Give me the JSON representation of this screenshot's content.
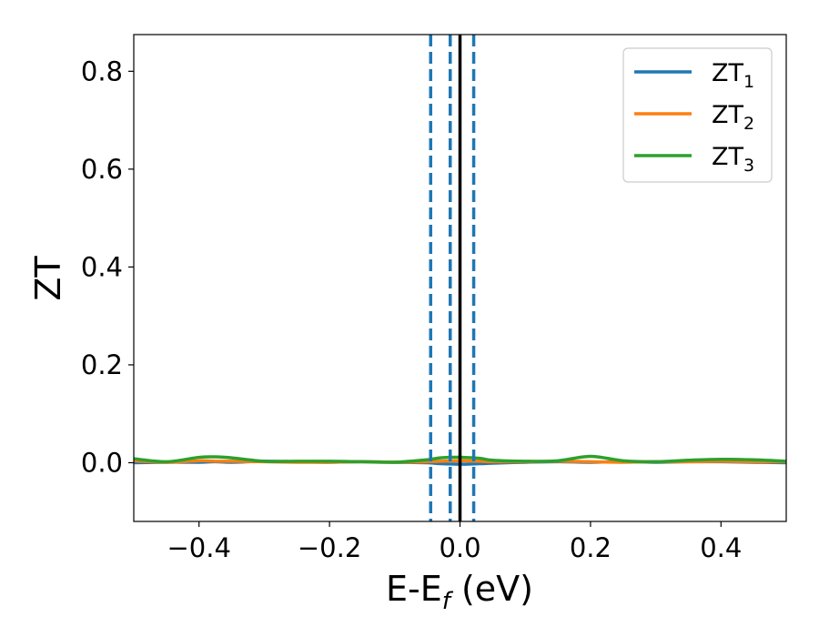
{
  "chart_data": {
    "type": "line",
    "xlabel": {
      "main": "E-E",
      "sub": "f",
      "unit": " (eV)"
    },
    "ylabel": "ZT",
    "xlim": [
      -0.5,
      0.5
    ],
    "ylim": [
      -0.12,
      0.875
    ],
    "xticks": [
      -0.4,
      -0.2,
      0.0,
      0.2,
      0.4
    ],
    "xtick_labels": [
      "−0.4",
      "−0.2",
      "0.0",
      "0.2",
      "0.4"
    ],
    "yticks": [
      0.0,
      0.2,
      0.4,
      0.6,
      0.8
    ],
    "ytick_labels": [
      "0.0",
      "0.2",
      "0.4",
      "0.6",
      "0.8"
    ],
    "grid": false,
    "legend_position": "top-right",
    "x": [
      -0.5,
      -0.45,
      -0.4,
      -0.375,
      -0.35,
      -0.3,
      -0.25,
      -0.2,
      -0.15,
      -0.1,
      -0.05,
      -0.03,
      0.0,
      0.03,
      0.05,
      0.1,
      0.15,
      0.2,
      0.25,
      0.3,
      0.35,
      0.4,
      0.45,
      0.5
    ],
    "series": [
      {
        "name": "ZT",
        "sub": "1",
        "color": "#1f77b4",
        "values": [
          0.0,
          0.001,
          0.001,
          0.002,
          0.001,
          0.003,
          0.002,
          0.001,
          0.002,
          0.001,
          0.0,
          -0.002,
          -0.003,
          -0.002,
          -0.001,
          0.001,
          0.002,
          0.001,
          0.002,
          0.001,
          0.002,
          0.002,
          0.001,
          0.0
        ]
      },
      {
        "name": "ZT",
        "sub": "2",
        "color": "#ff7f0e",
        "values": [
          0.004,
          0.001,
          0.004,
          0.003,
          0.003,
          0.002,
          0.001,
          0.001,
          0.002,
          0.001,
          0.002,
          0.003,
          0.004,
          0.003,
          0.002,
          0.002,
          0.003,
          0.002,
          0.001,
          0.002,
          0.002,
          0.003,
          0.002,
          0.002
        ]
      },
      {
        "name": "ZT",
        "sub": "3",
        "color": "#2ca02c",
        "values": [
          0.008,
          0.002,
          0.011,
          0.012,
          0.01,
          0.003,
          0.003,
          0.003,
          0.002,
          0.001,
          0.006,
          0.01,
          0.011,
          0.009,
          0.005,
          0.003,
          0.004,
          0.013,
          0.004,
          0.002,
          0.005,
          0.007,
          0.006,
          0.003
        ]
      }
    ],
    "vlines": [
      {
        "x": -0.045,
        "style": "dashed",
        "color": "#1f77b4"
      },
      {
        "x": -0.015,
        "style": "dashed",
        "color": "#1f77b4"
      },
      {
        "x": 0.021,
        "style": "dashed",
        "color": "#1f77b4"
      },
      {
        "x": 0.0,
        "style": "solid",
        "color": "#000000"
      }
    ]
  }
}
